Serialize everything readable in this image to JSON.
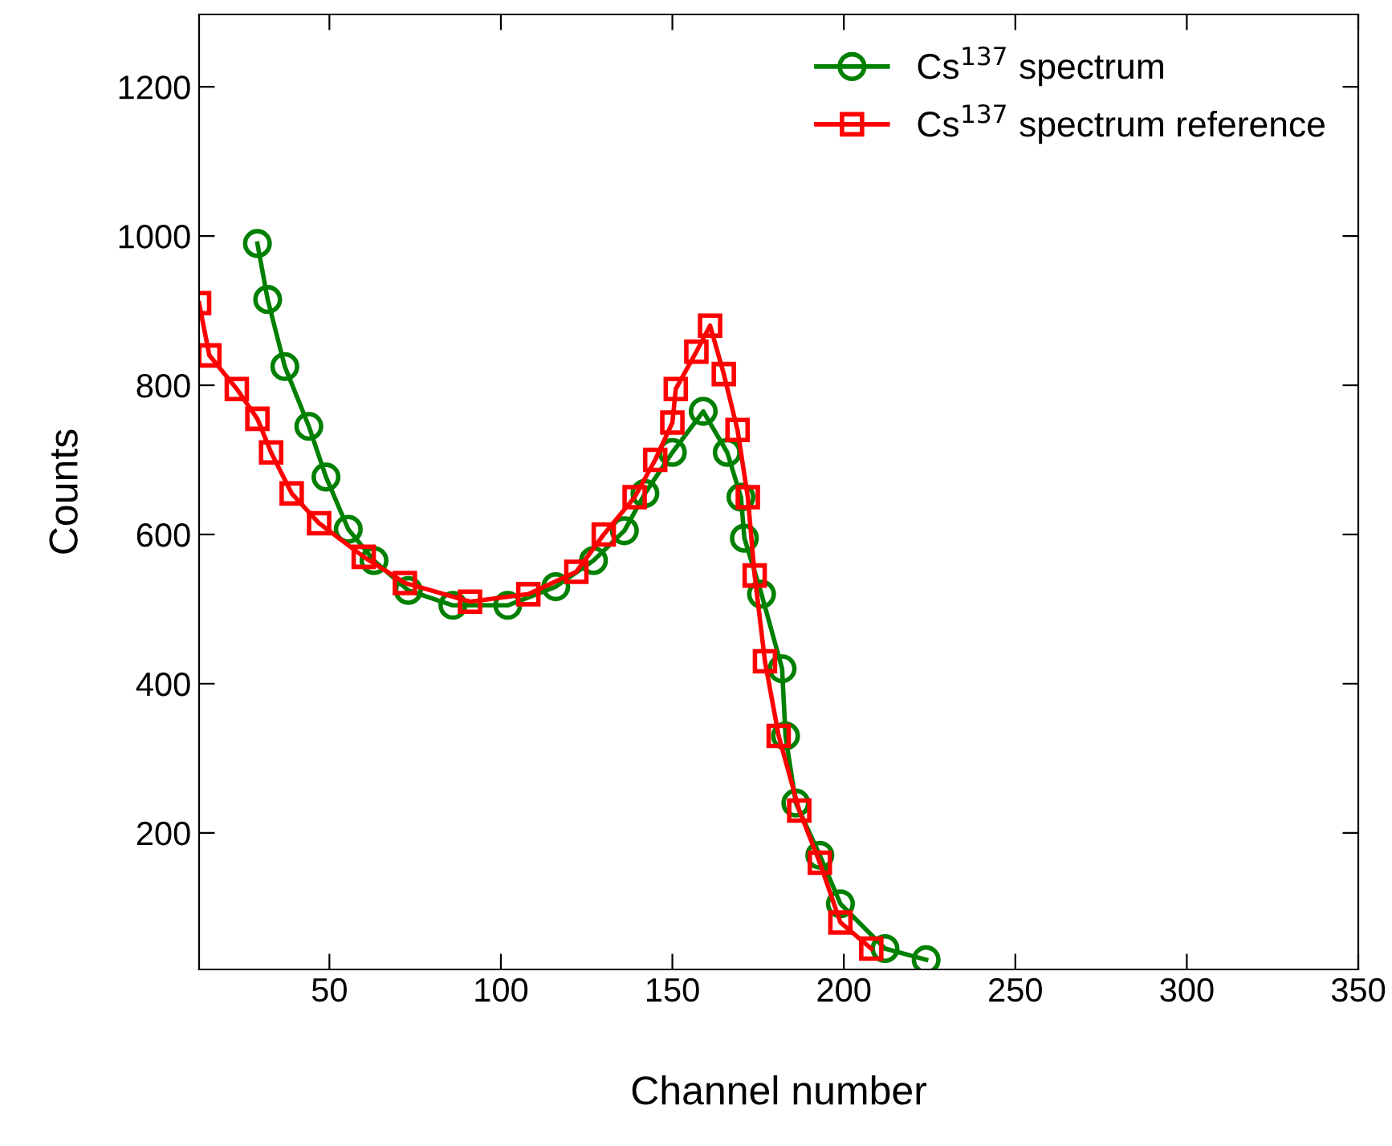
{
  "chart_data": {
    "type": "line",
    "xlabel": "Channel number",
    "ylabel": "Counts",
    "xlim": [
      12,
      350
    ],
    "ylim": [
      17,
      1297
    ],
    "xticks": [
      50,
      100,
      150,
      200,
      250,
      300,
      350
    ],
    "yticks": [
      200,
      400,
      600,
      800,
      1000,
      1200
    ],
    "grid": false,
    "legend": "top right",
    "line_style": "solid",
    "series": [
      {
        "name": "Cs$^{137}$ spectrum",
        "color": "#008000",
        "marker": "circle",
        "x": [
          29,
          32,
          37,
          44,
          49,
          55.5,
          63,
          73,
          86,
          102,
          116,
          127,
          136,
          142,
          150,
          159,
          166,
          170,
          171,
          176,
          182,
          183,
          186,
          193,
          199,
          212,
          224
        ],
        "values": [
          990,
          915,
          825,
          745,
          677,
          607,
          565,
          525,
          505,
          505,
          530,
          565,
          605,
          655,
          710,
          765,
          710,
          650,
          595,
          520,
          420,
          330,
          240,
          170,
          105,
          45,
          30
        ]
      },
      {
        "name": "Cs$^{137}$ spectrum reference",
        "color": "#ff0000",
        "marker": "square",
        "x": [
          12,
          15,
          23,
          29,
          33,
          39,
          47,
          60,
          72,
          91,
          108,
          122,
          130,
          139,
          145,
          150,
          151,
          157,
          161,
          165,
          169,
          172,
          174,
          177,
          181,
          187,
          193,
          199,
          208
        ],
        "values": [
          910,
          840,
          795,
          755,
          710,
          655,
          615,
          570,
          535,
          510,
          520,
          550,
          600,
          650,
          700,
          750,
          795,
          845,
          880,
          815,
          740,
          650,
          545,
          430,
          330,
          230,
          160,
          80,
          45
        ]
      }
    ]
  }
}
